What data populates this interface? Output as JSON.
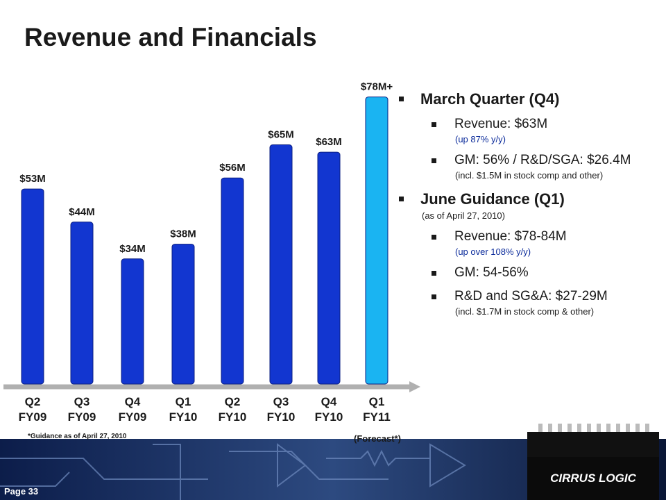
{
  "title": "Revenue and Financials",
  "chart_data": {
    "type": "bar",
    "categories": [
      "Q2 FY09",
      "Q3 FY09",
      "Q4 FY09",
      "Q1 FY10",
      "Q2 FY10",
      "Q3 FY10",
      "Q4 FY10",
      "Q1 FY11"
    ],
    "values": [
      53,
      44,
      34,
      38,
      56,
      65,
      63,
      78
    ],
    "value_labels": [
      "$53M",
      "$44M",
      "$34M",
      "$38M",
      "$56M",
      "$65M",
      "$63M",
      "$78M+"
    ],
    "colors": [
      "#1236d0",
      "#1236d0",
      "#1236d0",
      "#1236d0",
      "#1236d0",
      "#1236d0",
      "#1236d0",
      "#1ab4f2"
    ],
    "annotation": "(Forecast*)",
    "footnote": "*Guidance as of April 27, 2010"
  },
  "bullets": [
    {
      "heading": "March Quarter (Q4)",
      "items": [
        {
          "text": "Revenue: $63M",
          "note": "(up 87% y/y)",
          "note_color": "#0a2a9a"
        },
        {
          "text": "GM: 56% / R&D/SGA: $26.4M",
          "note": "(incl. $1.5M in stock comp and other)"
        }
      ]
    },
    {
      "heading": "June Guidance (Q1)",
      "note": "(as of April 27, 2010)",
      "items": [
        {
          "text": "Revenue: $78-84M",
          "note": "(up over 108% y/y)",
          "note_color": "#0a2a9a"
        },
        {
          "text": "GM: 54-56%"
        },
        {
          "text": "R&D and SG&A: $27-29M",
          "note": "(incl. $1.7M in stock comp & other)"
        }
      ]
    }
  ],
  "footer": {
    "page": "Page 33",
    "logo": "CIRRUS LOGIC"
  }
}
